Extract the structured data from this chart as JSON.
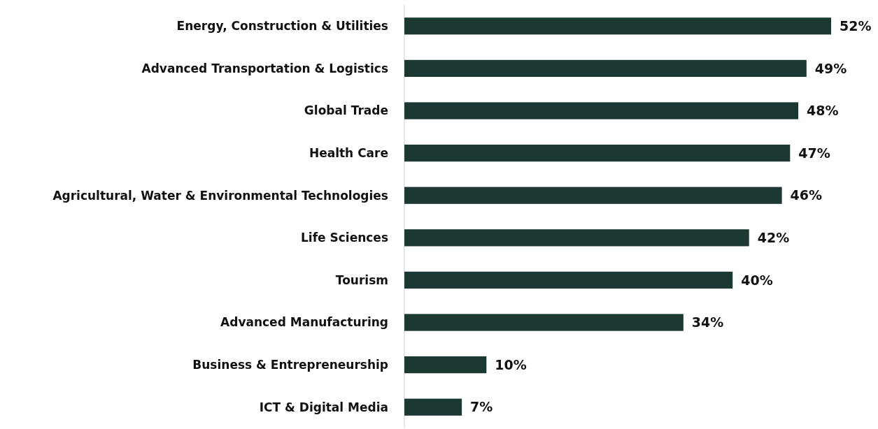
{
  "chart_data": {
    "type": "bar",
    "orientation": "horizontal",
    "categories": [
      "Energy, Construction & Utilities",
      "Advanced Transportation & Logistics",
      "Global Trade",
      "Health Care",
      "Agricultural, Water & Environmental Technologies",
      "Life Sciences",
      "Tourism",
      "Advanced Manufacturing",
      "Business & Entrepreneurship",
      "ICT & Digital Media"
    ],
    "values": [
      52,
      49,
      48,
      47,
      46,
      42,
      40,
      34,
      10,
      7
    ],
    "value_labels": [
      "52%",
      "49%",
      "48%",
      "47%",
      "46%",
      "42%",
      "40%",
      "34%",
      "10%",
      "7%"
    ],
    "color": "#1c3832"
  }
}
